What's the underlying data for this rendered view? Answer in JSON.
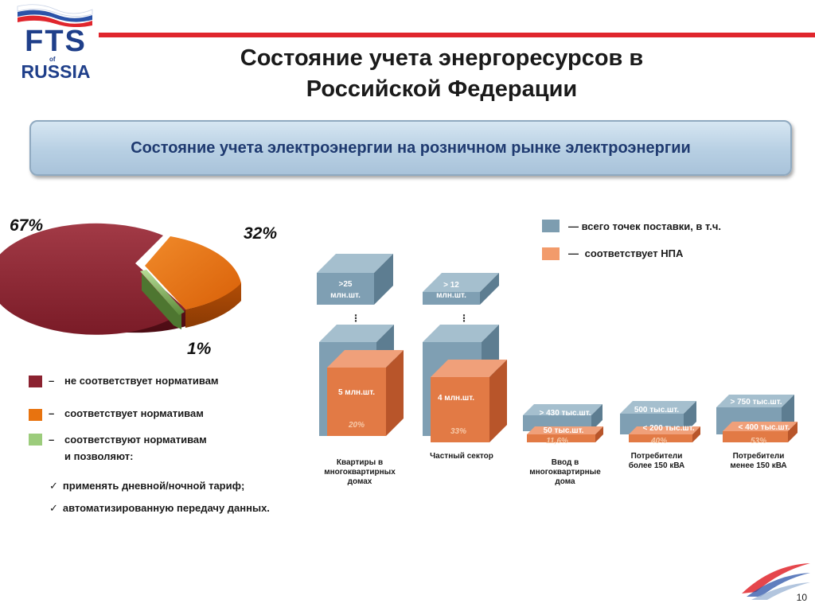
{
  "header": {
    "logo_top": "FTS",
    "logo_of": "of",
    "logo_bottom": "RUSSIA",
    "title_line1": "Состояние учета энергоресурсов в",
    "title_line2": "Российской Федерации",
    "banner": "Состояние учета электроэнергии на розничном рынке электроэнергии"
  },
  "pie": {
    "pct_non_compliant": "67%",
    "pct_compliant": "32%",
    "pct_smart": "1%"
  },
  "legend_left": {
    "items": [
      {
        "dash": "–",
        "label": "не соответствует нормативам"
      },
      {
        "dash": "–",
        "label": "соответствует нормативам"
      },
      {
        "dash": "–",
        "label": "соответствуют нормативам"
      }
    ],
    "sub": "и позволяют:",
    "checks": [
      {
        "tick": "✓",
        "label": "применять дневной/ночной тариф;"
      },
      {
        "tick": "✓",
        "label": "автоматизированную передачу данных."
      }
    ]
  },
  "legend_right": {
    "items": [
      {
        "dash": "—",
        "label": "всего точек поставки, в т.ч."
      },
      {
        "dash": "—",
        "label": "соответствует НПА"
      }
    ]
  },
  "bars": {
    "bar1": {
      "total_line1": ">25",
      "total_line2": "млн.шт.",
      "dots": "⋮",
      "npa": "5 млн.шт.",
      "pct": "20%",
      "label_lines": [
        "Квартиры в",
        "многоквартирных",
        "домах"
      ]
    },
    "bar2": {
      "total_line1": "> 12",
      "total_line2": "млн.шт.",
      "dots": "⋮",
      "npa": "4 млн.шт.",
      "pct": "33%",
      "label_lines": [
        "Частный сектор"
      ]
    },
    "bar3": {
      "total": "> 430 тыс.шт.",
      "npa": "50 тыс.шт.",
      "pct": "11,6%",
      "label_lines": [
        "Ввод в",
        "многоквартирные",
        "дома"
      ]
    },
    "bar4": {
      "total": "500 тыс.шт.",
      "npa": "< 200 тыс.шт.",
      "pct": "40%",
      "label_lines": [
        "Потребители",
        "более 150 кВА"
      ]
    },
    "bar5": {
      "total": "> 750 тыс.шт.",
      "npa": "< 400 тыс.шт.",
      "pct": "53%",
      "label_lines": [
        "Потребители",
        "менее 150 кВА"
      ]
    }
  },
  "colors": {
    "non_compliant": "#8b2230",
    "compliant": "#e8730f",
    "smart": "#9ccc7c",
    "total_bar": "#7d9db0",
    "npa_bar": "#e27a45",
    "accent_red": "#e0262d",
    "banner_text": "#1f3a70"
  },
  "footer": {
    "page_number": "10"
  },
  "chart_data": [
    {
      "type": "pie",
      "categories": [
        "не соответствует нормативам",
        "соответствует нормативам",
        "соответствуют нормативам и позволяют"
      ],
      "values": [
        67,
        32,
        1
      ],
      "unit": "%"
    },
    {
      "type": "bar",
      "categories": [
        "Квартиры в многоквартирных домах",
        "Частный сектор",
        "Ввод в многоквартирные дома",
        "Потребители более 150 кВА",
        "Потребители менее 150 кВА"
      ],
      "series": [
        {
          "name": "всего точек поставки, в т.ч.",
          "labels": [
            ">25 млн.шт.",
            "> 12 млн.шт.",
            "> 430 тыс.шт.",
            "500 тыс.шт.",
            "> 750 тыс.шт."
          ]
        },
        {
          "name": "соответствует НПА",
          "labels": [
            "5 млн.шт.",
            "4 млн.шт.",
            "50 тыс.шт.",
            "< 200 тыс.шт.",
            "< 400 тыс.шт."
          ],
          "percent": [
            20,
            33,
            11.6,
            40,
            53
          ]
        }
      ]
    }
  ]
}
